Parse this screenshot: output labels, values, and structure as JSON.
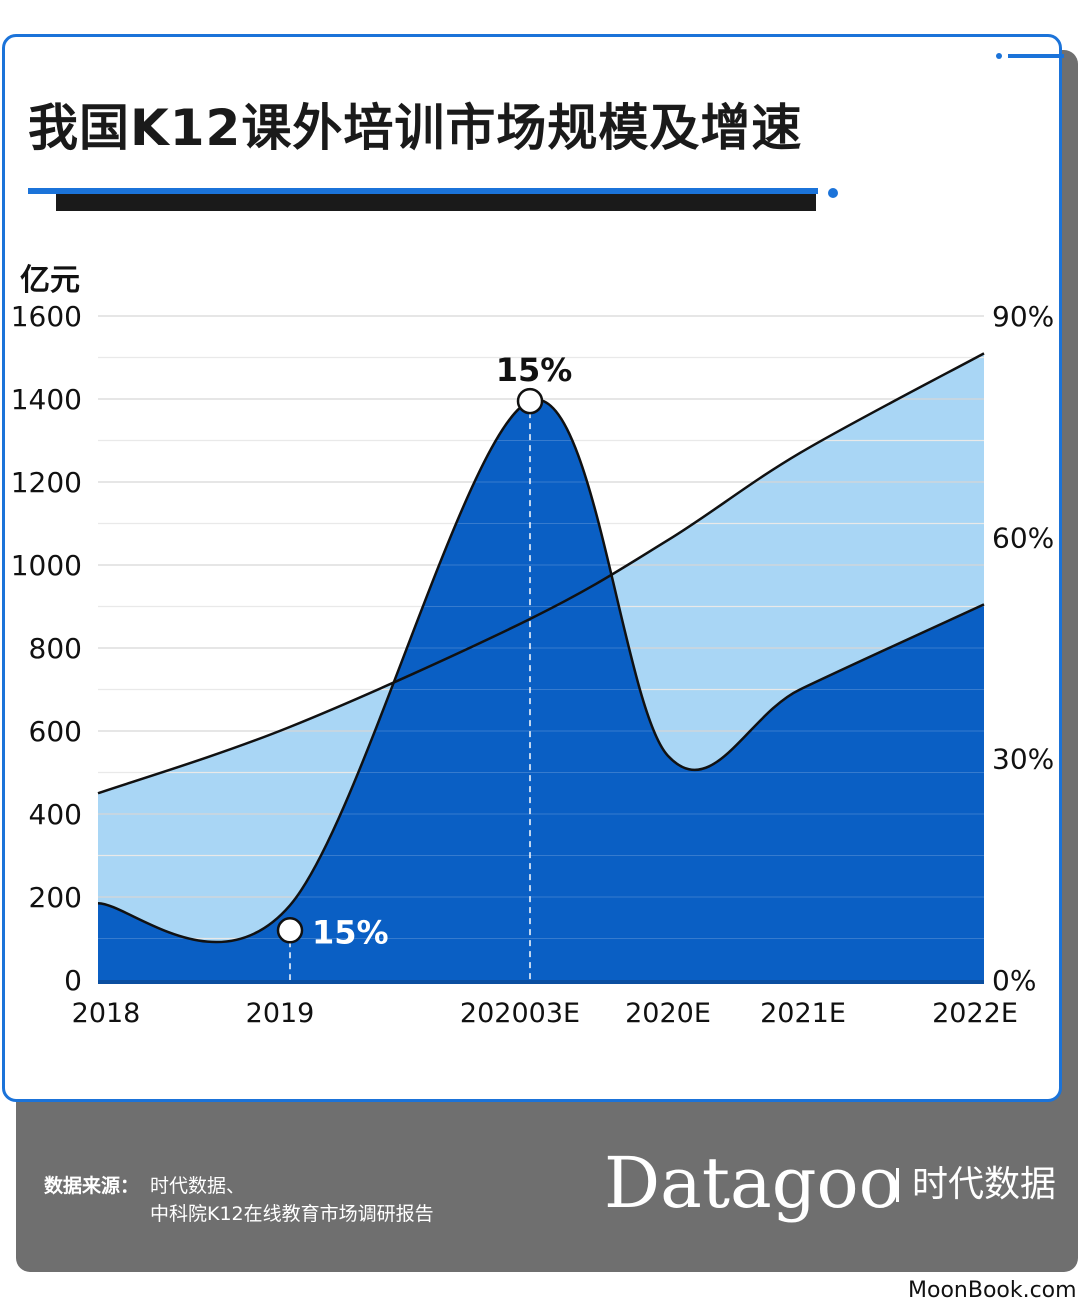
{
  "title": "我国K12课外培训市场规模及增速",
  "source": {
    "label": "数据来源：",
    "line1": "时代数据、",
    "line2": "中科院K12在线教育市场调研报告"
  },
  "brand": {
    "logo_text": "Datagoo",
    "cn_text": "时代数据"
  },
  "watermark": "MoonBook.com",
  "colors": {
    "accent": "#1b73d9",
    "area_dark": "#0a5fc4",
    "area_light": "#a9d6f5",
    "footer_gray": "#6f6f6f"
  },
  "chart_data": {
    "type": "area",
    "left_axis": {
      "unit": "亿元",
      "range": [
        0,
        1600
      ],
      "ticks": [
        "0",
        "200",
        "400",
        "600",
        "800",
        "1000",
        "1200",
        "1400",
        "1600"
      ]
    },
    "right_axis": {
      "range": [
        "0%",
        "90%"
      ],
      "ticks": [
        "0%",
        "30%",
        "60%",
        "90%"
      ]
    },
    "categories": [
      "2018",
      "2019",
      "202003E",
      "2020E",
      "2021E",
      "2022E"
    ],
    "series": [
      {
        "kind": "area_light",
        "values": [
          450,
          610,
          870,
          1060,
          1270,
          1510
        ]
      },
      {
        "kind": "area_dark",
        "values": [
          185,
          180,
          1395,
          540,
          700,
          905
        ]
      }
    ],
    "annotations": [
      {
        "category": "2019",
        "label": "15%"
      },
      {
        "category": "202003E",
        "label": "15%"
      }
    ],
    "grid": true
  }
}
